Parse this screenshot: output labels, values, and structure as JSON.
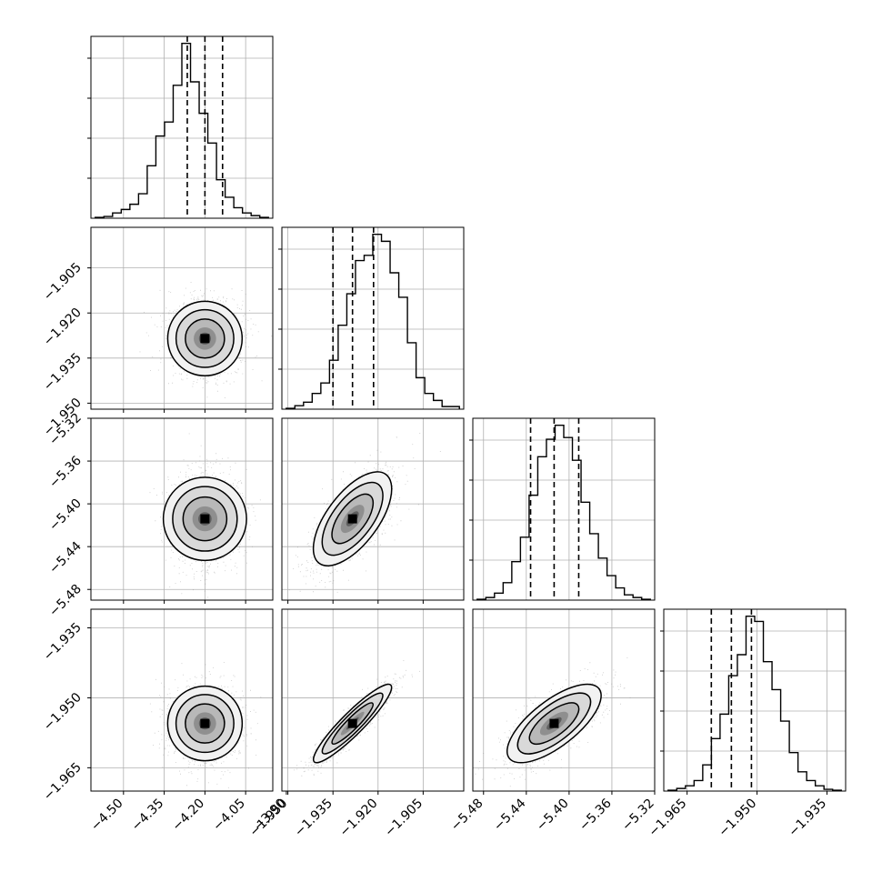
{
  "chart_data": {
    "type": "corner",
    "grid": true,
    "n_params": 4,
    "params": [
      {
        "center": -4.2,
        "sigma": 0.065,
        "q16": -4.265,
        "q50": -4.2,
        "q84": -4.135,
        "range": [
          -4.62,
          -3.95
        ],
        "ticks": [
          -4.5,
          -4.35,
          -4.2,
          -4.05,
          -3.9
        ],
        "tick_labels": [
          "−4.50",
          "−4.35",
          "−4.20",
          "−4.05",
          "−3.90"
        ],
        "hist": [
          0.5,
          1,
          3,
          5,
          8,
          14,
          30,
          47,
          55,
          76,
          100,
          78,
          60,
          43,
          22,
          12,
          6,
          3,
          1.5,
          0.5
        ]
      },
      {
        "center": -1.9285,
        "sigma": 0.0065,
        "q16": -1.935,
        "q50": -1.9285,
        "q84": -1.9215,
        "range": [
          -1.952,
          -1.8915
        ],
        "ticks": [
          -1.95,
          -1.935,
          -1.92,
          -1.905
        ],
        "tick_labels": [
          "−1.950",
          "−1.935",
          "−1.920",
          "−1.905"
        ],
        "hist": [
          0.5,
          2,
          4,
          9,
          15,
          28,
          48,
          66,
          85,
          88,
          100,
          96,
          78,
          64,
          38,
          18,
          9,
          5,
          1.5,
          1.5
        ]
      },
      {
        "center": -5.414,
        "sigma": 0.022,
        "q16": -5.436,
        "q50": -5.414,
        "q84": -5.391,
        "range": [
          -5.49,
          -5.32
        ],
        "ticks": [
          -5.48,
          -5.44,
          -5.4,
          -5.36,
          -5.32
        ],
        "tick_labels": [
          "−5.48",
          "−5.44",
          "−5.40",
          "−5.36",
          "−5.32"
        ],
        "hist": [
          0.5,
          1.5,
          4,
          10,
          22,
          36,
          60,
          82,
          92,
          100,
          93,
          80,
          56,
          38,
          24,
          14,
          7,
          3,
          1.5,
          0.5
        ]
      },
      {
        "center": -1.9555,
        "sigma": 0.0042,
        "q16": -1.9598,
        "q50": -1.9555,
        "q84": -1.9512,
        "range": [
          -1.97,
          -1.931
        ],
        "ticks": [
          -1.965,
          -1.95,
          -1.935
        ],
        "tick_labels": [
          "−1.965",
          "−1.950",
          "−1.935"
        ],
        "hist": [
          0.5,
          1.5,
          3,
          6,
          15,
          30,
          44,
          66,
          78,
          100,
          97,
          74,
          58,
          40,
          22,
          11,
          6,
          3,
          1,
          0.5
        ]
      }
    ],
    "correlations": [
      [
        1,
        0,
        0,
        0
      ],
      [
        0,
        1,
        0.65,
        0.92
      ],
      [
        0,
        0.65,
        1,
        0.72
      ],
      [
        0,
        0.92,
        0.72,
        1
      ]
    ],
    "quantile_lines": [
      0.16,
      0.5,
      0.84
    ],
    "style": {
      "line_color": "#000000",
      "grid_color": "#b0b0b0",
      "point_color": "#8a8a8a",
      "fill_colors": [
        "#ffffff",
        "#f2f2f2",
        "#d9d9d9",
        "#b8b8b8",
        "#8f8f8f",
        "#5f5f5f",
        "#2a2a2a",
        "#000000"
      ]
    }
  }
}
